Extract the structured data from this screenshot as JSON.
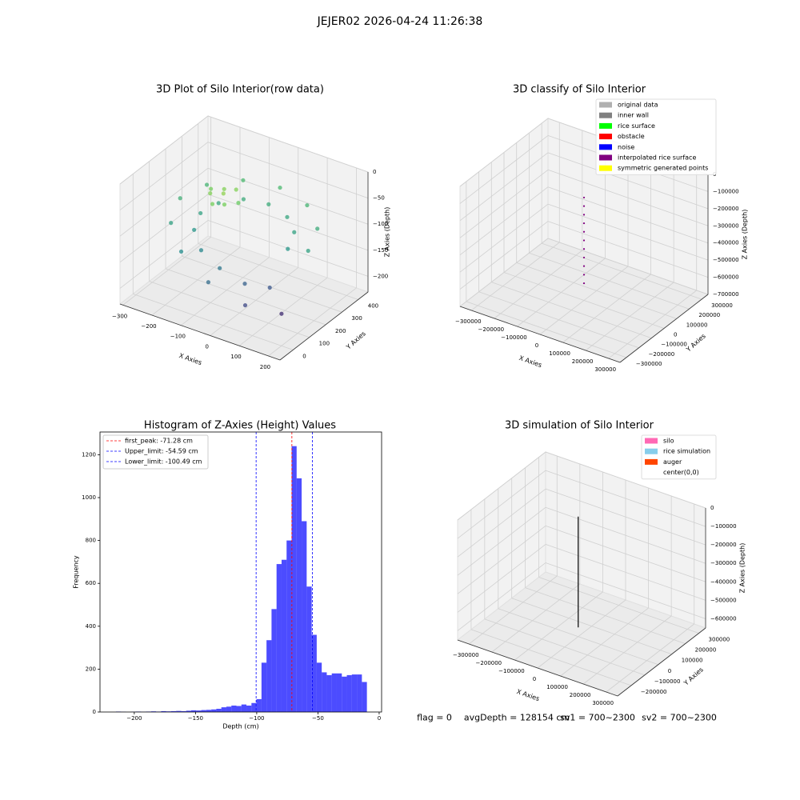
{
  "title": "JEJER02 2026-04-24 11:26:38",
  "status": [
    "flag = 0",
    "avgDepth = 128154 cm",
    "sv1 = 700~2300",
    "sv2 = 700~2300"
  ],
  "chart_data": [
    {
      "type": "scatter3d",
      "title": "3D Plot of Silo Interior(row data)",
      "xlabel": "X Axies",
      "ylabel": "Y Axies",
      "zlabel": "Z Axies (Depth)",
      "xlim": [
        -310,
        240
      ],
      "ylim": [
        -80,
        460
      ],
      "zlim": [
        -230,
        0
      ],
      "xticks": [
        {
          "value": -300,
          "label": "−300"
        },
        {
          "value": -200,
          "label": "−200"
        },
        {
          "value": -100,
          "label": "−100"
        },
        0,
        100,
        200
      ],
      "yticks": [
        0,
        100,
        200,
        300,
        400
      ],
      "zticks": [
        {
          "value": -200,
          "label": "−200"
        },
        {
          "value": -150,
          "label": "−150"
        },
        {
          "value": -100,
          "label": "−100"
        },
        {
          "value": -50,
          "label": "−50"
        },
        0
      ],
      "colormap": "viridis",
      "x": [
        180,
        150,
        70,
        -40,
        -150,
        -230,
        -260,
        -230,
        -150,
        -40,
        70,
        150,
        110,
        90,
        35,
        -40,
        -115,
        -170,
        -190,
        -170,
        -115,
        -40,
        35,
        90,
        -100,
        -120,
        -80,
        -140,
        -60,
        -110,
        -160,
        -90
      ],
      "y": [
        200,
        310,
        390,
        420,
        390,
        310,
        200,
        90,
        10,
        -20,
        10,
        90,
        200,
        275,
        330,
        350,
        330,
        275,
        200,
        125,
        70,
        50,
        70,
        125,
        180,
        220,
        150,
        170,
        200,
        130,
        210,
        240
      ],
      "z": [
        -100,
        -90,
        -80,
        -75,
        -75,
        -80,
        -85,
        -100,
        -120,
        -150,
        -180,
        -200,
        -110,
        -100,
        -95,
        -90,
        -90,
        -95,
        -100,
        -110,
        -125,
        -140,
        -160,
        -170,
        -40,
        -45,
        -50,
        -45,
        -55,
        -50,
        -50,
        -45
      ]
    },
    {
      "type": "scatter3d",
      "title": "3D classify of Silo Interior",
      "xlabel": "X Axies",
      "ylabel": "Y Axies",
      "zlabel": "Z Axies (Depth)",
      "xlim": [
        -350000,
        350000
      ],
      "ylim": [
        -350000,
        350000
      ],
      "zlim": [
        -700000,
        0
      ],
      "xticks": [
        {
          "value": -300000,
          "label": "−300000"
        },
        {
          "value": -200000,
          "label": "−200000"
        },
        {
          "value": -100000,
          "label": "−100000"
        },
        0,
        100000,
        200000,
        300000
      ],
      "yticks": [
        {
          "value": -300000,
          "label": "−300000"
        },
        {
          "value": -200000,
          "label": "−200000"
        },
        {
          "value": -100000,
          "label": "−100000"
        },
        0,
        100000,
        200000,
        300000
      ],
      "zticks": [
        {
          "value": -700000,
          "label": "−700000"
        },
        {
          "value": -600000,
          "label": "−600000"
        },
        {
          "value": -500000,
          "label": "−500000"
        },
        {
          "value": -400000,
          "label": "−400000"
        },
        {
          "value": -300000,
          "label": "−300000"
        },
        {
          "value": -200000,
          "label": "−200000"
        },
        {
          "value": -100000,
          "label": "−100000"
        },
        0
      ],
      "series": [
        {
          "name": "original data",
          "color": "#b0b0b0"
        },
        {
          "name": "inner wall",
          "color": "#808080"
        },
        {
          "name": "rice surface",
          "color": "#00ff00"
        },
        {
          "name": "obstacle",
          "color": "#ff0000"
        },
        {
          "name": "noise",
          "color": "#0000ff"
        },
        {
          "name": "interpolated rice surface",
          "color": "#800080",
          "x": [
            0,
            0,
            0,
            0,
            0,
            0,
            0,
            0,
            0,
            0,
            0
          ],
          "y": [
            0,
            0,
            0,
            0,
            0,
            0,
            0,
            0,
            0,
            0,
            0
          ],
          "z": [
            -100000,
            -150000,
            -200000,
            -250000,
            -300000,
            -350000,
            -400000,
            -450000,
            -500000,
            -550000,
            -600000
          ]
        },
        {
          "name": "symmetric generated points",
          "color": "#ffff00"
        }
      ]
    },
    {
      "type": "histogram",
      "title": "Histogram of Z-Axies (Height) Values",
      "xlabel": "Depth (cm)",
      "ylabel": "Frequency",
      "color": "#0000ff",
      "alpha": 0.7,
      "xlim": [
        -228,
        2
      ],
      "ylim": [
        0,
        1306
      ],
      "xticks": [
        {
          "value": -200,
          "label": "−200"
        },
        {
          "value": -150,
          "label": "−150"
        },
        {
          "value": -100,
          "label": "−100"
        },
        {
          "value": -50,
          "label": "−50"
        },
        0
      ],
      "yticks": [
        0,
        200,
        400,
        600,
        800,
        1000,
        1200
      ],
      "bins": [
        -215,
        -210.9,
        -206.8,
        -202.7,
        -198.6,
        -194.5,
        -190.4,
        -186.3,
        -182.2,
        -178.1,
        -174,
        -169.9,
        -165.8,
        -161.7,
        -157.6,
        -153.5,
        -149.4,
        -145.3,
        -141.2,
        -137.1,
        -133,
        -128.9,
        -124.8,
        -120.7,
        -116.6,
        -112.5,
        -108.4,
        -104.3,
        -100.2,
        -96.1,
        -92,
        -87.9,
        -83.8,
        -79.7,
        -75.6,
        -71.5,
        -67.4,
        -63.3,
        -59.2,
        -55.1,
        -51,
        -46.9,
        -42.8,
        -38.7,
        -34.6,
        -30.5,
        -26.4,
        -22.3,
        -18.2,
        -14.1,
        -10
      ],
      "counts": [
        2,
        1,
        0,
        1,
        2,
        1,
        2,
        3,
        2,
        4,
        3,
        4,
        5,
        4,
        6,
        8,
        7,
        9,
        10,
        12,
        15,
        22,
        25,
        30,
        28,
        35,
        30,
        42,
        60,
        230,
        335,
        480,
        690,
        710,
        800,
        1240,
        1090,
        890,
        585,
        360,
        230,
        185,
        172,
        180,
        180,
        165,
        172,
        175,
        175,
        140
      ],
      "lines": [
        {
          "name": "first_peak: -71.28 cm",
          "value": -71.28,
          "color": "#ff0000"
        },
        {
          "name": "Upper_limit: -54.59 cm",
          "value": -54.59,
          "color": "#0000ff"
        },
        {
          "name": "Lower_limit: -100.49 cm",
          "value": -100.49,
          "color": "#0000ff"
        }
      ]
    },
    {
      "type": "scatter3d",
      "title": "3D simulation of Silo Interior",
      "xlabel": "X Axies",
      "ylabel": "Y Axies",
      "zlabel": "Z Axies (Depth)",
      "xlim": [
        -350000,
        350000
      ],
      "ylim": [
        -300000,
        350000
      ],
      "zlim": [
        -650000,
        0
      ],
      "xticks": [
        {
          "value": -300000,
          "label": "−300000"
        },
        {
          "value": -200000,
          "label": "−200000"
        },
        {
          "value": -100000,
          "label": "−100000"
        },
        0,
        100000,
        200000,
        300000
      ],
      "yticks": [
        {
          "value": -200000,
          "label": "−200000"
        },
        {
          "value": -100000,
          "label": "−100000"
        },
        0,
        100000,
        200000,
        300000
      ],
      "zticks": [
        {
          "value": -600000,
          "label": "−600000"
        },
        {
          "value": -500000,
          "label": "−500000"
        },
        {
          "value": -400000,
          "label": "−400000"
        },
        {
          "value": -300000,
          "label": "−300000"
        },
        {
          "value": -200000,
          "label": "−200000"
        },
        {
          "value": -100000,
          "label": "−100000"
        },
        0
      ],
      "series": [
        {
          "name": "silo",
          "color": "#ff69b4"
        },
        {
          "name": "rice simulation",
          "color": "#87ceeb"
        },
        {
          "name": "auger",
          "color": "#ff4500"
        },
        {
          "name": "center(0,0)",
          "color": "#ffffff"
        }
      ],
      "line": {
        "color": "#000000",
        "x": [
          0,
          0
        ],
        "y": [
          0,
          0
        ],
        "z": [
          0,
          -600000
        ]
      }
    }
  ]
}
